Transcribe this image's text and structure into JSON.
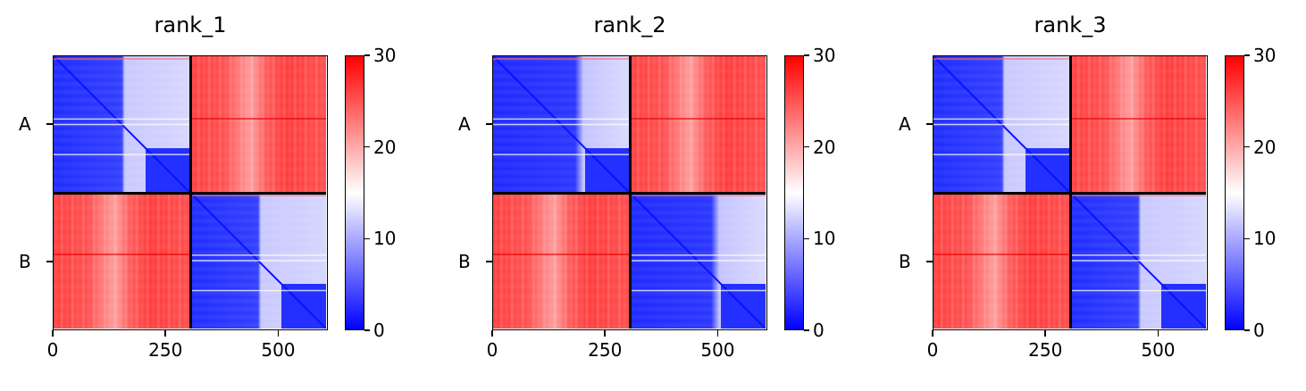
{
  "chart_data": [
    {
      "type": "heatmap",
      "title": "rank_1",
      "x_ticks": [
        "0",
        "250",
        "500"
      ],
      "x_tick_values": [
        0,
        250,
        500
      ],
      "y_ticks": [
        "A",
        "B"
      ],
      "xlim": [
        0,
        610
      ],
      "chain_boundary": 305,
      "colorbar": {
        "ticks": [
          "30",
          "20",
          "10",
          "0"
        ],
        "values": [
          30,
          20,
          10,
          0
        ],
        "range": [
          0,
          30
        ],
        "colormap": "bwr"
      },
      "blocks": {
        "A-A": "low",
        "A-B": "high",
        "B-A": "high",
        "B-B": "low"
      }
    },
    {
      "type": "heatmap",
      "title": "rank_2",
      "x_ticks": [
        "0",
        "250",
        "500"
      ],
      "x_tick_values": [
        0,
        250,
        500
      ],
      "y_ticks": [
        "A",
        "B"
      ],
      "xlim": [
        0,
        610
      ],
      "chain_boundary": 305,
      "colorbar": {
        "ticks": [
          "30",
          "20",
          "10",
          "0"
        ],
        "values": [
          30,
          20,
          10,
          0
        ],
        "range": [
          0,
          30
        ],
        "colormap": "bwr"
      },
      "blocks": {
        "A-A": "low",
        "A-B": "high",
        "B-A": "high",
        "B-B": "low"
      }
    },
    {
      "type": "heatmap",
      "title": "rank_3",
      "x_ticks": [
        "0",
        "250",
        "500"
      ],
      "x_tick_values": [
        0,
        250,
        500
      ],
      "y_ticks": [
        "A",
        "B"
      ],
      "xlim": [
        0,
        610
      ],
      "chain_boundary": 305,
      "colorbar": {
        "ticks": [
          "30",
          "20",
          "10",
          "0"
        ],
        "values": [
          30,
          20,
          10,
          0
        ],
        "range": [
          0,
          30
        ],
        "colormap": "bwr"
      },
      "blocks": {
        "A-A": "low",
        "A-B": "high",
        "B-A": "high",
        "B-B": "low"
      }
    }
  ],
  "colors": {
    "high": "#ff0000",
    "mid": "#ffffff",
    "low": "#0000ff"
  }
}
